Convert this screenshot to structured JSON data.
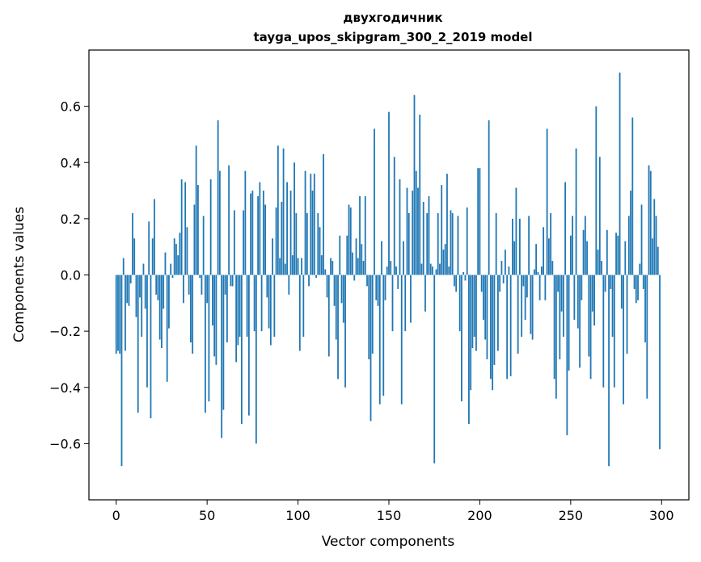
{
  "chart_data": {
    "type": "bar",
    "title": "двухгодичник",
    "subtitle": "tayga_upos_skipgram_300_2_2019 model",
    "xlabel": "Vector components",
    "ylabel": "Components values",
    "xlim": [
      -15,
      315
    ],
    "ylim": [
      -0.8,
      0.8
    ],
    "x_ticks": [
      0,
      50,
      100,
      150,
      200,
      250,
      300
    ],
    "y_ticks": [
      -0.6,
      -0.4,
      -0.2,
      0.0,
      0.2,
      0.4,
      0.6
    ],
    "x_tick_labels": [
      "0",
      "50",
      "100",
      "150",
      "200",
      "250",
      "300"
    ],
    "y_tick_labels": [
      "−0.6",
      "−0.4",
      "−0.2",
      "0.0",
      "0.2",
      "0.4",
      "0.6"
    ],
    "grid": false,
    "bar_color": "#1f77b4",
    "values": [
      -0.28,
      -0.27,
      -0.28,
      -0.68,
      0.06,
      -0.27,
      -0.1,
      -0.11,
      -0.03,
      0.22,
      0.13,
      -0.15,
      -0.49,
      -0.08,
      -0.22,
      0.04,
      -0.12,
      -0.4,
      0.19,
      -0.51,
      0.13,
      0.27,
      -0.07,
      -0.09,
      -0.23,
      -0.26,
      -0.12,
      0.08,
      -0.38,
      -0.19,
      0.04,
      -0.01,
      0.13,
      0.11,
      0.07,
      0.15,
      0.34,
      -0.1,
      0.33,
      0.17,
      -0.07,
      -0.24,
      -0.28,
      0.25,
      0.46,
      0.32,
      -0.01,
      -0.07,
      0.21,
      -0.49,
      -0.1,
      -0.45,
      0.34,
      -0.18,
      -0.29,
      -0.32,
      0.55,
      0.37,
      -0.58,
      -0.48,
      -0.07,
      -0.24,
      0.39,
      -0.04,
      -0.04,
      0.23,
      -0.31,
      -0.25,
      -0.22,
      -0.53,
      0.23,
      0.37,
      -0.22,
      -0.5,
      0.29,
      0.3,
      -0.2,
      -0.6,
      0.28,
      0.33,
      -0.2,
      0.3,
      0.25,
      -0.08,
      -0.19,
      -0.25,
      0.13,
      -0.22,
      0.24,
      0.46,
      0.06,
      0.26,
      0.45,
      0.04,
      0.33,
      -0.07,
      0.3,
      0.07,
      0.4,
      0.22,
      0.06,
      -0.27,
      0.06,
      -0.22,
      0.37,
      0.22,
      -0.04,
      0.36,
      0.3,
      0.36,
      -0.01,
      0.22,
      0.17,
      0.07,
      0.43,
      0.02,
      -0.08,
      -0.29,
      0.06,
      0.05,
      -0.11,
      -0.23,
      -0.37,
      0.14,
      -0.1,
      -0.17,
      -0.4,
      0.14,
      0.25,
      0.24,
      0.08,
      -0.02,
      0.13,
      0.06,
      0.28,
      0.11,
      0.05,
      0.28,
      -0.04,
      -0.3,
      -0.52,
      -0.28,
      0.52,
      -0.09,
      -0.11,
      -0.46,
      0.12,
      -0.43,
      -0.09,
      0.03,
      0.58,
      0.05,
      -0.2,
      0.42,
      0.03,
      -0.05,
      0.34,
      -0.46,
      0.12,
      -0.2,
      0.31,
      0.22,
      -0.17,
      0.3,
      0.64,
      0.37,
      0.31,
      0.57,
      0.04,
      0.26,
      -0.13,
      0.22,
      0.28,
      0.04,
      0.03,
      -0.67,
      0.02,
      0.22,
      0.04,
      0.32,
      0.09,
      0.11,
      0.36,
      0.03,
      0.23,
      0.22,
      -0.04,
      -0.06,
      0.21,
      -0.2,
      -0.45,
      0.01,
      -0.02,
      0.24,
      -0.53,
      -0.41,
      -0.26,
      -0.22,
      -0.27,
      0.38,
      0.38,
      -0.06,
      -0.16,
      -0.23,
      -0.3,
      0.55,
      -0.37,
      -0.41,
      -0.32,
      0.22,
      -0.27,
      -0.06,
      0.05,
      -0.03,
      0.09,
      -0.37,
      0.03,
      -0.36,
      0.2,
      0.12,
      0.31,
      -0.28,
      0.2,
      -0.22,
      -0.04,
      -0.16,
      -0.08,
      0.21,
      -0.21,
      -0.23,
      0.02,
      0.11,
      0.01,
      -0.09,
      0.03,
      0.17,
      -0.09,
      0.52,
      0.13,
      0.22,
      0.05,
      -0.37,
      -0.44,
      -0.06,
      -0.3,
      -0.13,
      -0.22,
      0.33,
      -0.57,
      -0.34,
      0.14,
      0.21,
      -0.16,
      0.45,
      -0.19,
      -0.33,
      -0.09,
      0.16,
      0.21,
      0.12,
      -0.29,
      -0.37,
      -0.13,
      -0.18,
      0.6,
      0.09,
      0.42,
      0.05,
      -0.4,
      -0.06,
      0.16,
      -0.68,
      -0.05,
      -0.22,
      -0.4,
      0.15,
      0.14,
      0.72,
      -0.12,
      -0.46,
      0.12,
      -0.28,
      0.21,
      0.3,
      0.56,
      -0.05,
      -0.1,
      -0.09,
      0.04,
      0.25,
      -0.05,
      -0.24,
      -0.44,
      0.39,
      0.37,
      0.13,
      0.27,
      0.21,
      0.1,
      -0.62
    ]
  }
}
